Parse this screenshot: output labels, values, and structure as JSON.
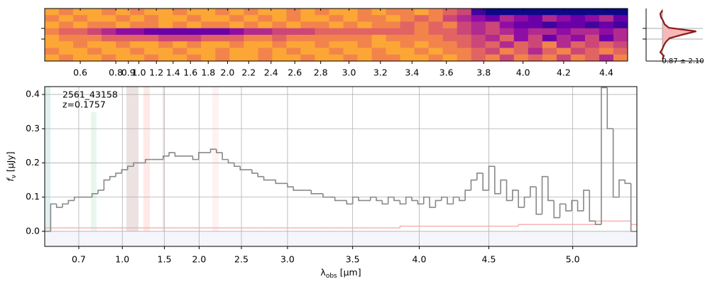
{
  "chart_data": [
    {
      "type": "heatmap",
      "x": [
        0.45,
        0.53,
        0.6,
        0.68,
        0.75,
        0.85,
        0.98,
        1.14,
        1.31,
        1.48,
        1.64,
        1.8,
        1.95,
        2.09,
        2.22,
        2.35,
        2.47,
        2.59,
        2.7,
        2.81,
        2.91,
        3.01,
        3.1,
        3.19,
        3.28,
        3.37,
        3.46,
        3.54,
        3.62,
        3.7,
        3.77,
        3.85,
        3.92,
        3.99,
        4.06,
        4.13,
        4.2,
        4.27,
        4.34,
        4.4,
        4.47
      ],
      "xticks": [
        0.6,
        0.8,
        0.9,
        {
          "value": 1,
          "label": "1.0"
        },
        1.2,
        1.4,
        1.6,
        1.8,
        {
          "value": 2,
          "label": "2.0"
        },
        2.2,
        2.4,
        2.6,
        2.8,
        {
          "value": 3,
          "label": "3.0"
        },
        3.2,
        3.4,
        3.6,
        3.8,
        {
          "value": 4,
          "label": "4.0"
        },
        4.2,
        4.4
      ],
      "zlim": [
        0,
        9
      ],
      "colormap": [
        "#0d0887",
        "#41049d",
        "#6a00a8",
        "#8f0da4",
        "#b12a90",
        "#cc4778",
        "#e16462",
        "#f2844b",
        "#fca636",
        "#fcce25"
      ],
      "z": [
        [
          8,
          7,
          8,
          8,
          7,
          8,
          7,
          8,
          8,
          7,
          8,
          8,
          7,
          8,
          7,
          8,
          8,
          7,
          8,
          7,
          8,
          8,
          7,
          8,
          7,
          7,
          8,
          7,
          6,
          5,
          1,
          0,
          0,
          0,
          0,
          0,
          0,
          0,
          0,
          0,
          0
        ],
        [
          7,
          8,
          7,
          8,
          8,
          7,
          8,
          7,
          8,
          8,
          7,
          8,
          8,
          7,
          8,
          7,
          8,
          7,
          8,
          8,
          7,
          8,
          7,
          7,
          8,
          7,
          6,
          7,
          5,
          4,
          3,
          2,
          4,
          3,
          2,
          4,
          3,
          2,
          3,
          4,
          2
        ],
        [
          8,
          7,
          8,
          7,
          7,
          8,
          7,
          7,
          8,
          7,
          8,
          7,
          7,
          8,
          7,
          8,
          7,
          8,
          7,
          7,
          8,
          7,
          8,
          7,
          7,
          6,
          7,
          6,
          7,
          5,
          4,
          5,
          3,
          2,
          2,
          1,
          2,
          2,
          1,
          2,
          1
        ],
        [
          7,
          6,
          6,
          5,
          4,
          3,
          3,
          2,
          2,
          2,
          2,
          2,
          2,
          3,
          4,
          4,
          5,
          5,
          5,
          6,
          6,
          6,
          6,
          6,
          6,
          6,
          7,
          6,
          6,
          5,
          4,
          5,
          4,
          3,
          4,
          4,
          3,
          4,
          4,
          3,
          4
        ],
        [
          8,
          7,
          7,
          7,
          6,
          6,
          6,
          6,
          5,
          5,
          5,
          6,
          6,
          6,
          7,
          7,
          6,
          7,
          7,
          7,
          7,
          7,
          7,
          8,
          7,
          7,
          7,
          7,
          6,
          6,
          5,
          4,
          6,
          3,
          5,
          2,
          4,
          3,
          5,
          2,
          4
        ],
        [
          8,
          8,
          7,
          8,
          8,
          7,
          8,
          8,
          7,
          8,
          7,
          8,
          8,
          7,
          8,
          8,
          7,
          8,
          8,
          7,
          8,
          8,
          7,
          8,
          8,
          7,
          8,
          7,
          7,
          6,
          5,
          6,
          4,
          6,
          5,
          7,
          4,
          6,
          5,
          6,
          5
        ],
        [
          7,
          8,
          8,
          7,
          8,
          8,
          7,
          8,
          8,
          7,
          8,
          8,
          7,
          8,
          8,
          7,
          8,
          7,
          8,
          8,
          7,
          8,
          8,
          7,
          8,
          8,
          7,
          8,
          7,
          7,
          6,
          5,
          7,
          6,
          4,
          6,
          7,
          5,
          6,
          7,
          6
        ],
        [
          8,
          7,
          8,
          8,
          7,
          8,
          8,
          7,
          8,
          8,
          7,
          8,
          7,
          8,
          8,
          7,
          8,
          8,
          7,
          8,
          8,
          7,
          8,
          7,
          7,
          8,
          8,
          7,
          8,
          7,
          6,
          7,
          5,
          7,
          6,
          7,
          5,
          7,
          6,
          4,
          7
        ]
      ]
    },
    {
      "type": "profile",
      "values": [
        0,
        -0.06,
        -0.04,
        0.02,
        0.06,
        0.18,
        0.95,
        0.55,
        0.2,
        0.1,
        0.04,
        0,
        -0.06,
        0.04,
        0
      ],
      "xlim": [
        -0.46,
        1.14
      ],
      "color": "#8b1a1a",
      "fill": "#f6b8b8",
      "annotation": "0.87 ± 2.10"
    },
    {
      "type": "step",
      "annotations": [
        "2561_43158",
        "z=0.1757"
      ],
      "xlabel": [
        "λ",
        "obs",
        " [μm]"
      ],
      "ylabel": [
        "f",
        "ν",
        " [μJy]"
      ],
      "x": [
        0.61,
        0.63,
        0.64,
        0.66,
        0.68,
        0.69,
        0.73,
        0.77,
        0.81,
        0.85,
        0.89,
        0.93,
        0.97,
        1.02,
        1.09,
        1.16,
        1.23,
        1.31,
        1.38,
        1.45,
        1.52,
        1.61,
        1.69,
        1.78,
        1.87,
        1.96,
        2.03,
        2.1,
        2.17,
        2.24,
        2.31,
        2.38,
        2.45,
        2.52,
        2.58,
        2.65,
        2.71,
        2.78,
        2.84,
        2.91,
        2.97,
        3.03,
        3.07,
        3.12,
        3.16,
        3.21,
        3.25,
        3.3,
        3.34,
        3.39,
        3.43,
        3.48,
        3.52,
        3.57,
        3.61,
        3.65,
        3.7,
        3.74,
        3.79,
        3.83,
        3.88,
        3.92,
        3.97,
        4.01,
        4.06,
        4.1,
        4.14,
        4.18,
        4.23,
        4.27,
        4.31,
        4.35,
        4.4,
        4.44,
        4.48,
        4.52,
        4.55,
        4.59,
        4.63,
        4.66,
        4.7,
        4.73,
        4.77,
        4.8,
        4.84,
        4.87,
        4.91,
        4.94,
        4.98,
        5.01,
        5.05,
        5.08,
        5.12,
        5.15,
        5.19,
        5.22,
        5.26,
        5.29,
        5.33,
        5.36
      ],
      "series": [
        {
          "color": "#f7a8a8",
          "values": [
            0.01,
            0.01,
            0.01,
            0.01,
            0.01,
            0.01,
            0.01,
            0.01,
            0.01,
            0.01,
            0.01,
            0.01,
            0.01,
            0.01,
            0.01,
            0.01,
            0.01,
            0.01,
            0.01,
            0.01,
            0.01,
            0.01,
            0.01,
            0.01,
            0.01,
            0.01,
            0.01,
            0.01,
            0.01,
            0.01,
            0.01,
            0.01,
            0.01,
            0.01,
            0.01,
            0.01,
            0.01,
            0.01,
            0.01,
            0.01,
            0.01,
            0.01,
            0.01,
            0.01,
            0.01,
            0.01,
            0.01,
            0.01,
            0.01,
            0.01,
            0.01,
            0.01,
            0.01,
            0.01,
            0.01,
            0.01,
            0.01,
            0.01,
            0.01,
            0.01,
            0.015,
            0.015,
            0.015,
            0.015,
            0.015,
            0.015,
            0.015,
            0.015,
            0.015,
            0.015,
            0.015,
            0.015,
            0.015,
            0.015,
            0.015,
            0.015,
            0.015,
            0.015,
            0.015,
            0.015,
            0.02,
            0.02,
            0.02,
            0.02,
            0.02,
            0.02,
            0.02,
            0.02,
            0.02,
            0.02,
            0.02,
            0.02,
            0.02,
            0.03,
            0.03,
            0.03,
            0.03,
            0.03,
            0.03,
            0.02
          ]
        },
        {
          "color": "#888888",
          "values": [
            0.0,
            0.08,
            0.07,
            0.08,
            0.09,
            0.1,
            0.1,
            0.1,
            0.11,
            0.12,
            0.15,
            0.16,
            0.17,
            0.18,
            0.19,
            0.2,
            0.2,
            0.21,
            0.21,
            0.21,
            0.22,
            0.23,
            0.22,
            0.22,
            0.22,
            0.21,
            0.23,
            0.23,
            0.24,
            0.23,
            0.21,
            0.2,
            0.19,
            0.18,
            0.18,
            0.17,
            0.16,
            0.15,
            0.15,
            0.14,
            0.14,
            0.13,
            0.12,
            0.12,
            0.12,
            0.11,
            0.11,
            0.1,
            0.1,
            0.09,
            0.09,
            0.08,
            0.1,
            0.09,
            0.09,
            0.1,
            0.09,
            0.08,
            0.1,
            0.09,
            0.08,
            0.1,
            0.09,
            0.08,
            0.1,
            0.07,
            0.09,
            0.1,
            0.08,
            0.1,
            0.09,
            0.12,
            0.15,
            0.17,
            0.12,
            0.19,
            0.11,
            0.15,
            0.09,
            0.12,
            0.07,
            0.1,
            0.13,
            0.05,
            0.16,
            0.09,
            0.04,
            0.08,
            0.06,
            0.09,
            0.06,
            0.12,
            0.03,
            0.02,
            0.42,
            0.3,
            0.1,
            0.15,
            0.14,
            0.0
          ]
        }
      ],
      "ylim": [
        -0.044,
        0.423
      ],
      "yticks": [
        {
          "value": 0,
          "label": "0.0"
        },
        0.1,
        0.2,
        0.3,
        0.4
      ],
      "xticks": [
        0.7,
        {
          "value": 1,
          "label": "1.0"
        },
        1.5,
        {
          "value": 2,
          "label": "2.0"
        },
        2.5,
        {
          "value": 3,
          "label": "3.0"
        },
        3.5,
        {
          "value": 4,
          "label": "4.0"
        },
        4.5,
        {
          "value": 5,
          "label": "5.0"
        }
      ],
      "grid": true
    }
  ]
}
